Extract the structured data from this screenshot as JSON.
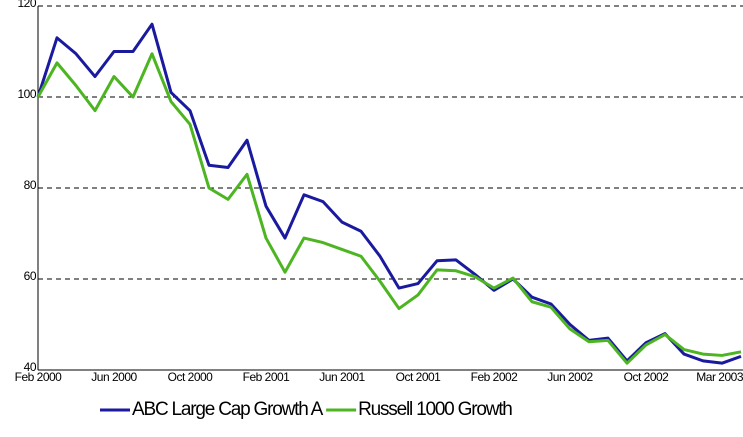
{
  "chart_data": {
    "type": "line",
    "categories": [
      "Feb 2000",
      null,
      null,
      null,
      "Jun 2000",
      null,
      null,
      null,
      "Oct 2000",
      null,
      null,
      null,
      "Feb 2001",
      null,
      null,
      null,
      "Jun 2001",
      null,
      null,
      null,
      "Oct 2001",
      null,
      null,
      null,
      "Feb 2002",
      null,
      null,
      null,
      "Jun 2002",
      null,
      null,
      null,
      "Oct 2002",
      null,
      null,
      null,
      null,
      "Mar 2003"
    ],
    "series": [
      {
        "name": "ABC Large Cap Growth A",
        "color": "#1a1a9e",
        "values": [
          100,
          113,
          109.5,
          104.5,
          110,
          110,
          116,
          101,
          97,
          85,
          84.5,
          90.5,
          76,
          69,
          78.5,
          77,
          72.5,
          70.5,
          65,
          58,
          59,
          64,
          64.2,
          61,
          57.5,
          60,
          56,
          54.5,
          50,
          46.5,
          47,
          42,
          46,
          48,
          43.5,
          42,
          41.5,
          43
        ]
      },
      {
        "name": "Russell 1000 Growth",
        "color": "#4cb521",
        "values": [
          100,
          107.5,
          102.5,
          97,
          104.5,
          100,
          109.5,
          99,
          94,
          80,
          77.5,
          83,
          69,
          61.5,
          69,
          68,
          66.5,
          65,
          59.5,
          53.5,
          56.5,
          62,
          61.8,
          60.5,
          58,
          60.2,
          55,
          53.8,
          49,
          46.2,
          46.5,
          41.5,
          45.5,
          47.8,
          44.5,
          43.5,
          43.2,
          44
        ]
      }
    ],
    "ylim": [
      40,
      120
    ],
    "yticks": [
      40,
      60,
      80,
      100,
      120
    ],
    "grid": true,
    "legend": "bottom"
  }
}
